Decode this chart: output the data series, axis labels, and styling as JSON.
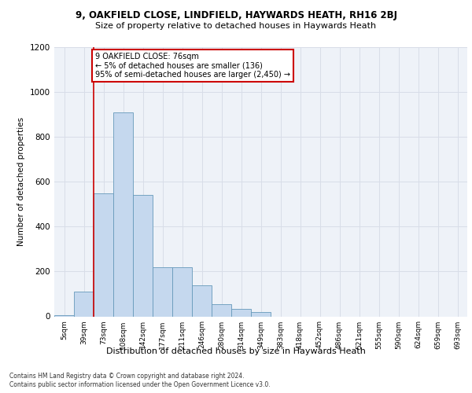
{
  "title1": "9, OAKFIELD CLOSE, LINDFIELD, HAYWARDS HEATH, RH16 2BJ",
  "title2": "Size of property relative to detached houses in Haywards Heath",
  "xlabel": "Distribution of detached houses by size in Haywards Heath",
  "ylabel": "Number of detached properties",
  "categories": [
    "5sqm",
    "39sqm",
    "73sqm",
    "108sqm",
    "142sqm",
    "177sqm",
    "211sqm",
    "246sqm",
    "280sqm",
    "314sqm",
    "349sqm",
    "383sqm",
    "418sqm",
    "452sqm",
    "486sqm",
    "521sqm",
    "555sqm",
    "590sqm",
    "624sqm",
    "659sqm",
    "693sqm"
  ],
  "values": [
    5,
    110,
    550,
    910,
    540,
    220,
    220,
    140,
    55,
    32,
    20,
    0,
    0,
    0,
    0,
    0,
    0,
    0,
    0,
    0,
    0
  ],
  "bar_color": "#c5d8ee",
  "bar_edge_color": "#6699bb",
  "vline_x_idx": 2,
  "vline_color": "#cc0000",
  "ylim": [
    0,
    1200
  ],
  "yticks": [
    0,
    200,
    400,
    600,
    800,
    1000,
    1200
  ],
  "annotation_text": "9 OAKFIELD CLOSE: 76sqm\n← 5% of detached houses are smaller (136)\n95% of semi-detached houses are larger (2,450) →",
  "annotation_box_color": "#ffffff",
  "annotation_box_edge": "#cc0000",
  "footer1": "Contains HM Land Registry data © Crown copyright and database right 2024.",
  "footer2": "Contains public sector information licensed under the Open Government Licence v3.0.",
  "background_color": "#eef2f8",
  "grid_color": "#d8dde8",
  "title1_fontsize": 8.5,
  "title2_fontsize": 8.0,
  "ylabel_fontsize": 7.5,
  "xlabel_fontsize": 8.0,
  "tick_fontsize": 6.5,
  "footer_fontsize": 5.5
}
